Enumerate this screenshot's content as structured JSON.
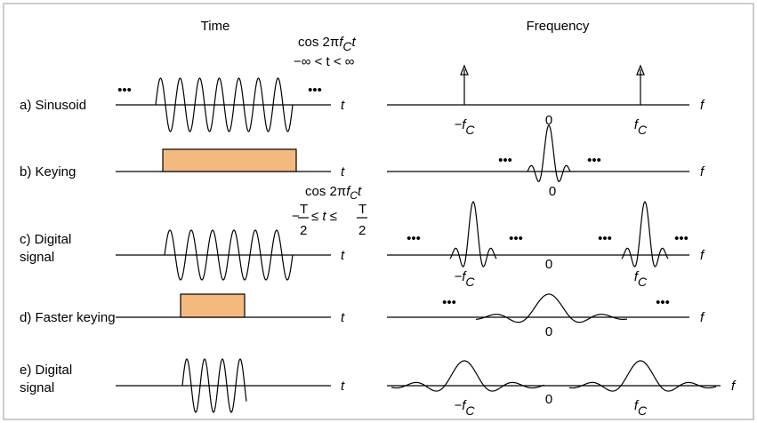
{
  "headers": {
    "time": "Time",
    "frequency": "Frequency"
  },
  "sinusoid_formula": {
    "cos": "cos 2π",
    "f": "f",
    "sub": "C",
    "t": "t",
    "range": "−∞ < t < ∞"
  },
  "window_formula": {
    "cos": "cos 2π",
    "f": "f",
    "sub": "C",
    "t": "t",
    "minus": "−",
    "T": "T",
    "two": "2",
    "mid": "≤ t ≤"
  },
  "rows": [
    {
      "label": [
        "a) Sinusoid"
      ]
    },
    {
      "label": [
        "b) Keying"
      ]
    },
    {
      "label": [
        "c) Digital",
        "signal"
      ]
    },
    {
      "label": [
        "d) Faster keying"
      ]
    },
    {
      "label": [
        "e) Digital",
        "signal"
      ]
    }
  ],
  "axis": {
    "t": "t",
    "f": "f",
    "zero": "0",
    "neg": "−f",
    "pos": "f",
    "sub": "C"
  },
  "ellipsis": "•••"
}
